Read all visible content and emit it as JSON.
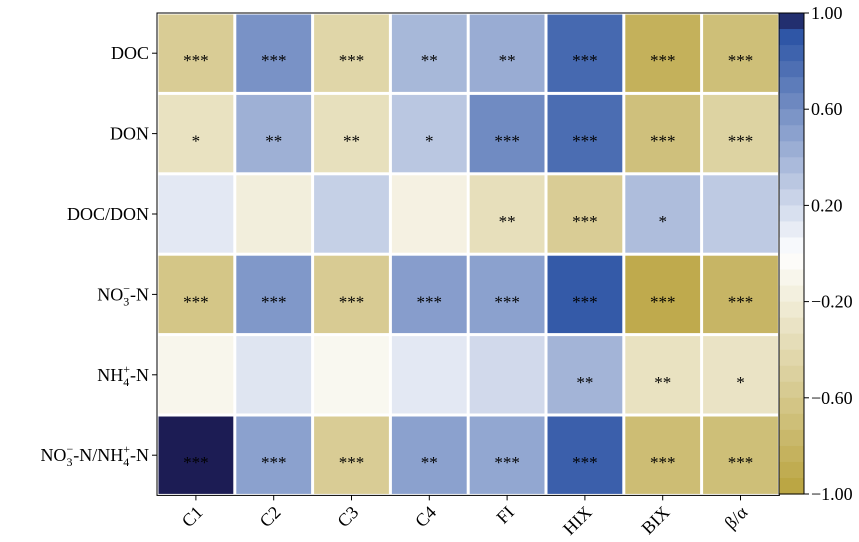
{
  "chart_data": {
    "type": "heatmap",
    "title": "",
    "xlabel": "",
    "ylabel": "",
    "columns": [
      "C1",
      "C2",
      "C3",
      "C4",
      "FI",
      "HIX",
      "BIX",
      "β/α"
    ],
    "rows": [
      {
        "label": "DOC",
        "main": "DOC",
        "sup": "",
        "tail": ""
      },
      {
        "label": "DON",
        "main": "DON",
        "sup": "",
        "tail": ""
      },
      {
        "label": "DOC/DON",
        "main": "DOC/DON",
        "sup": "",
        "tail": ""
      },
      {
        "label": "NO3−-N",
        "main": "NO",
        "sub": "3",
        "sup": "−",
        "tail": "-N"
      },
      {
        "label": "NH4+-N",
        "main": "NH",
        "sub": "4",
        "sup": "+",
        "tail": "-N"
      },
      {
        "label": "NO3−-N/NH4+-N",
        "main": "NO",
        "sub": "3",
        "sup": "−",
        "tail": "-N/NH",
        "sub2": "4",
        "sup2": "+",
        "tail2": "-N"
      }
    ],
    "values": [
      [
        -0.55,
        0.58,
        -0.45,
        0.38,
        0.44,
        0.8,
        -0.85,
        -0.7
      ],
      [
        -0.32,
        0.42,
        -0.34,
        0.3,
        0.62,
        0.78,
        -0.68,
        -0.48
      ],
      [
        0.12,
        -0.18,
        0.25,
        -0.15,
        -0.35,
        -0.55,
        0.35,
        0.28
      ],
      [
        -0.62,
        0.55,
        -0.56,
        0.52,
        0.5,
        0.88,
        -0.92,
        -0.8
      ],
      [
        -0.1,
        0.14,
        -0.08,
        0.12,
        0.2,
        0.4,
        -0.32,
        -0.3
      ],
      [
        1.0,
        0.5,
        -0.55,
        0.5,
        0.47,
        0.85,
        -0.72,
        -0.7
      ]
    ],
    "significance": [
      [
        "***",
        "***",
        "***",
        "**",
        "**",
        "***",
        "***",
        "***"
      ],
      [
        "*",
        "**",
        "**",
        "*",
        "***",
        "***",
        "***",
        "***"
      ],
      [
        "",
        "",
        "",
        "",
        "**",
        "***",
        "*",
        ""
      ],
      [
        "***",
        "***",
        "***",
        "***",
        "***",
        "***",
        "***",
        "***"
      ],
      [
        "",
        "",
        "",
        "",
        "",
        "**",
        "**",
        "*"
      ],
      [
        "***",
        "***",
        "***",
        "**",
        "***",
        "***",
        "***",
        "***"
      ]
    ],
    "colorbar": {
      "range": [
        -1.0,
        1.0
      ],
      "ticks": [
        1.0,
        0.6,
        0.2,
        -0.2,
        -0.6,
        -1.0
      ],
      "tick_labels": [
        "1.00",
        "0.60",
        "0.20",
        "−0.20",
        "−0.60",
        "−1.00"
      ],
      "color_positive": "#2f56a6",
      "color_zero": "#ffffff",
      "color_negative": "#b9a33e",
      "color_max": "#1c1c54"
    }
  }
}
